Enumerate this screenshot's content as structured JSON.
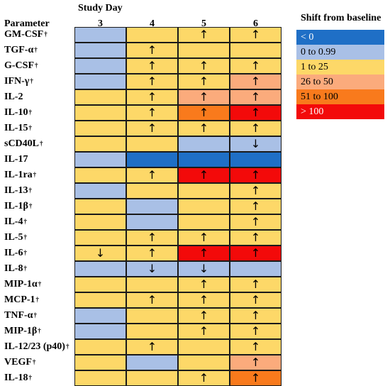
{
  "header": {
    "study_day": "Study Day",
    "parameter": "Parameter"
  },
  "days": [
    "3",
    "4",
    "5",
    "6"
  ],
  "legend": {
    "title": "Shift from baseline",
    "items": [
      {
        "label": "< 0",
        "color": "#1f6fc6",
        "text_color": "#ffffff"
      },
      {
        "label": "0 to 0.99",
        "color": "#a9c0e6",
        "text_color": "#000000"
      },
      {
        "label": "1 to 25",
        "color": "#fdd868",
        "text_color": "#000000"
      },
      {
        "label": "26 to 50",
        "color": "#fbab7c",
        "text_color": "#000000"
      },
      {
        "label": "51 to 100",
        "color": "#f97a1c",
        "text_color": "#000000"
      },
      {
        "label": "> 100",
        "color": "#f30a0a",
        "text_color": "#ffffff"
      }
    ]
  },
  "chart_data": {
    "type": "heatmap",
    "title": "",
    "x_title": "Study Day",
    "y_title": "Parameter",
    "x": [
      "3",
      "4",
      "5",
      "6"
    ],
    "legend_title": "Shift from baseline",
    "categories": [
      "< 0",
      "0 to 0.99",
      "1 to 25",
      "26 to 50",
      "51 to 100",
      "> 100"
    ],
    "rows": [
      {
        "name": "GM-CSF",
        "dagger": true,
        "cells": [
          1,
          2,
          2,
          2
        ],
        "arrows": [
          "",
          "",
          "↑",
          "↑"
        ]
      },
      {
        "name": "TGF-α",
        "dagger": true,
        "cells": [
          1,
          2,
          2,
          2
        ],
        "arrows": [
          "",
          "↑",
          "",
          ""
        ]
      },
      {
        "name": "G-CSF",
        "dagger": true,
        "cells": [
          1,
          2,
          2,
          2
        ],
        "arrows": [
          "",
          "↑",
          "↑",
          "↑"
        ]
      },
      {
        "name": "IFN-γ",
        "dagger": true,
        "cells": [
          1,
          2,
          2,
          3
        ],
        "arrows": [
          "",
          "↑",
          "↑",
          "↑"
        ]
      },
      {
        "name": "IL-2",
        "dagger": false,
        "cells": [
          2,
          2,
          3,
          3
        ],
        "arrows": [
          "",
          "↑",
          "↑",
          "↑"
        ]
      },
      {
        "name": "IL-10",
        "dagger": true,
        "cells": [
          2,
          2,
          4,
          5
        ],
        "arrows": [
          "",
          "↑",
          "↑",
          "↑"
        ]
      },
      {
        "name": "IL-15",
        "dagger": true,
        "cells": [
          2,
          2,
          2,
          2
        ],
        "arrows": [
          "",
          "↑",
          "↑",
          "↑"
        ]
      },
      {
        "name": "sCD40L",
        "dagger": true,
        "cells": [
          2,
          2,
          1,
          1
        ],
        "arrows": [
          "",
          "",
          "",
          "↓"
        ]
      },
      {
        "name": "IL-17",
        "dagger": false,
        "cells": [
          1,
          0,
          0,
          0
        ],
        "arrows": [
          "",
          "",
          "",
          ""
        ]
      },
      {
        "name": "IL-1ra",
        "dagger": true,
        "cells": [
          2,
          2,
          5,
          5
        ],
        "arrows": [
          "",
          "↑",
          "↑",
          "↑"
        ]
      },
      {
        "name": "IL-13",
        "dagger": true,
        "cells": [
          1,
          2,
          2,
          2
        ],
        "arrows": [
          "",
          "",
          "",
          "↑"
        ]
      },
      {
        "name": "IL-1β",
        "dagger": true,
        "cells": [
          2,
          1,
          2,
          2
        ],
        "arrows": [
          "",
          "",
          "",
          "↑"
        ]
      },
      {
        "name": "IL-4",
        "dagger": true,
        "cells": [
          2,
          1,
          2,
          2
        ],
        "arrows": [
          "",
          "",
          "",
          "↑"
        ]
      },
      {
        "name": "IL-5",
        "dagger": true,
        "cells": [
          2,
          2,
          2,
          2
        ],
        "arrows": [
          "",
          "↑",
          "↑",
          "↑"
        ]
      },
      {
        "name": "IL-6",
        "dagger": true,
        "cells": [
          2,
          2,
          5,
          5
        ],
        "arrows": [
          "↓",
          "↑",
          "↑",
          "↑"
        ]
      },
      {
        "name": "IL-8",
        "dagger": true,
        "cells": [
          1,
          1,
          1,
          1
        ],
        "arrows": [
          "",
          "↓",
          "↓",
          ""
        ]
      },
      {
        "name": "MIP-1α",
        "dagger": true,
        "cells": [
          2,
          2,
          2,
          2
        ],
        "arrows": [
          "",
          "",
          "↑",
          "↑"
        ]
      },
      {
        "name": "MCP-1",
        "dagger": true,
        "cells": [
          2,
          2,
          2,
          2
        ],
        "arrows": [
          "",
          "↑",
          "↑",
          "↑"
        ]
      },
      {
        "name": "TNF-α",
        "dagger": true,
        "cells": [
          1,
          2,
          2,
          2
        ],
        "arrows": [
          "",
          "",
          "↑",
          "↑"
        ]
      },
      {
        "name": "MIP-1β",
        "dagger": true,
        "cells": [
          1,
          2,
          2,
          2
        ],
        "arrows": [
          "",
          "",
          "↑",
          "↑"
        ]
      },
      {
        "name": "IL-12/23 (p40)",
        "dagger": true,
        "cells": [
          2,
          2,
          2,
          2
        ],
        "arrows": [
          "",
          "↑",
          "",
          "↑"
        ]
      },
      {
        "name": "VEGF",
        "dagger": true,
        "cells": [
          2,
          1,
          2,
          3
        ],
        "arrows": [
          "",
          "",
          "",
          "↑"
        ]
      },
      {
        "name": "IL-18",
        "dagger": true,
        "cells": [
          2,
          2,
          2,
          4
        ],
        "arrows": [
          "",
          "",
          "↑",
          "↑"
        ]
      }
    ]
  }
}
